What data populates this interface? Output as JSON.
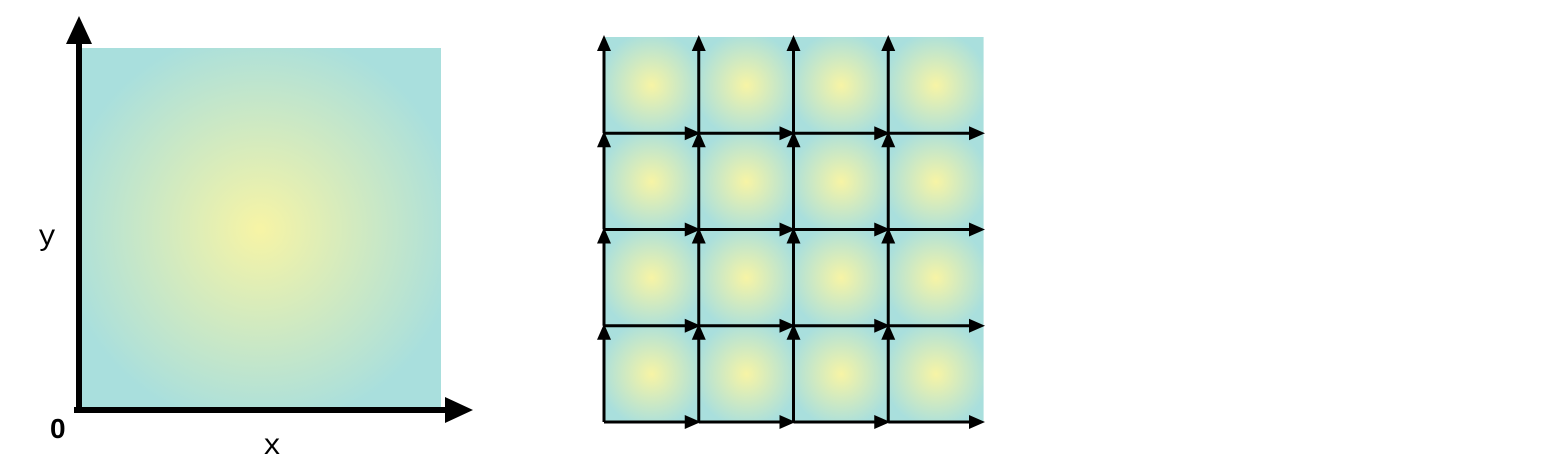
{
  "single_field": {
    "origin_label": "0",
    "x_axis_label": "x",
    "y_axis_label": "y"
  },
  "tiled_field": {
    "rows": 4,
    "cols": 4
  },
  "colors": {
    "gradient_center": "#f7f4a5",
    "gradient_edge": "#a9dfdd",
    "stroke": "#000000"
  }
}
